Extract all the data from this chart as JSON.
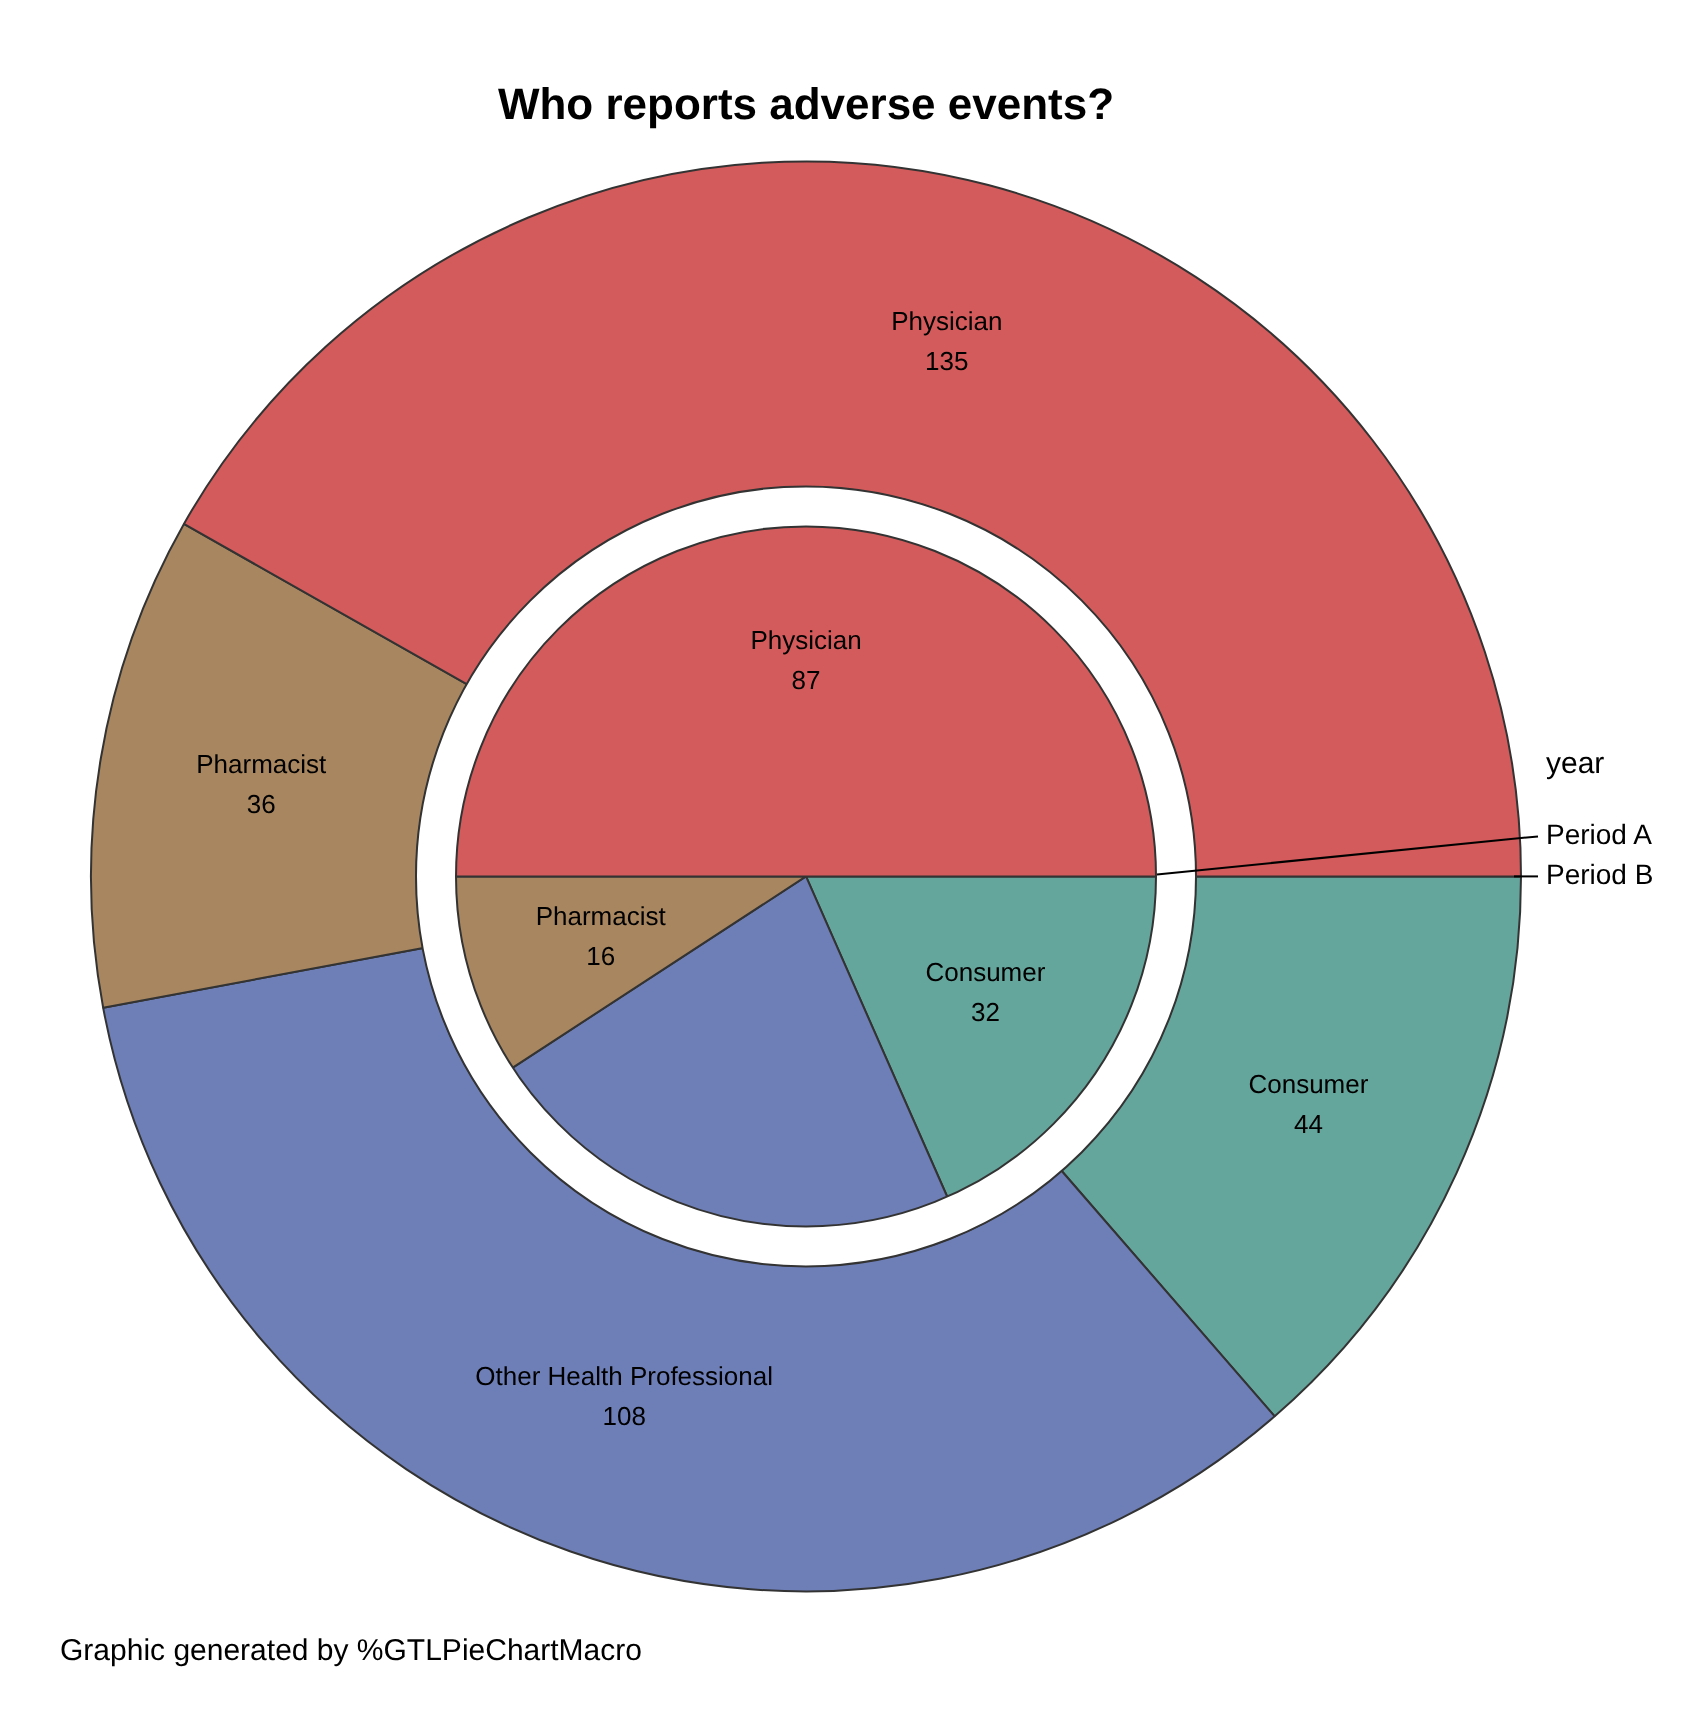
{
  "chart_data": {
    "type": "pie",
    "title": "Who reports adverse events?",
    "legend_title": "year",
    "legend": "right",
    "categories": [
      "Physician",
      "Pharmacist",
      "Other Health Professional",
      "Consumer"
    ],
    "colors": [
      "#d35b5b",
      "#a8865f",
      "#6e7fb8",
      "#64a59c"
    ],
    "series": [
      {
        "name": "Period A",
        "values": [
          87,
          16,
          39,
          32
        ],
        "value_labels": [
          "87",
          "16",
          null,
          "32"
        ]
      },
      {
        "name": "Period B",
        "values": [
          135,
          36,
          108,
          44
        ],
        "value_labels": [
          "135",
          "36",
          "108",
          "44"
        ]
      }
    ],
    "annotations": [
      "Graphic generated by %GTLPieChartMacro"
    ]
  }
}
